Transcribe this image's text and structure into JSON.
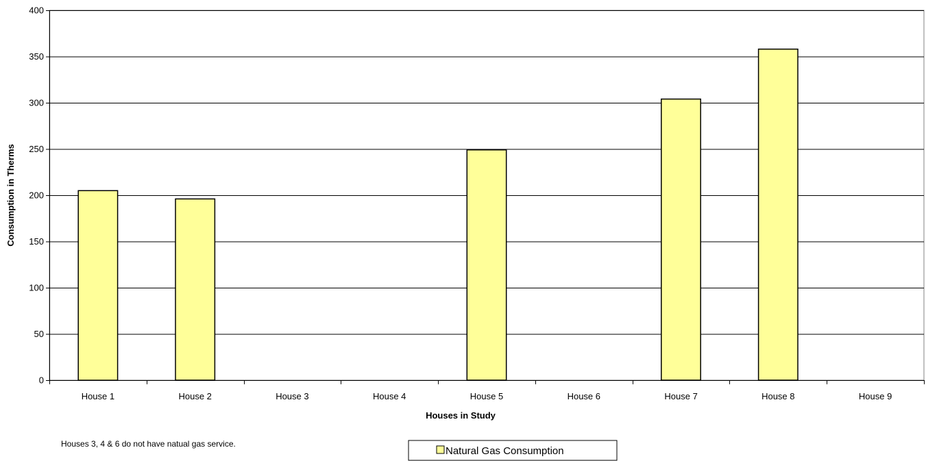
{
  "chart_data": {
    "type": "bar",
    "title": "",
    "xlabel": "Houses in Study",
    "ylabel": "Consumption in Therms",
    "categories": [
      "House 1",
      "House 2",
      "House 3",
      "House 4",
      "House 5",
      "House 6",
      "House 7",
      "House 8",
      "House 9"
    ],
    "series": [
      {
        "name": "Natural Gas Consumption",
        "values": [
          205,
          196,
          0,
          0,
          249,
          0,
          304,
          358,
          0
        ],
        "color": "#ffff99"
      }
    ],
    "ylim": [
      0,
      400
    ],
    "yticks": [
      0,
      50,
      100,
      150,
      200,
      250,
      300,
      350,
      400
    ],
    "grid": true,
    "legend_position": "bottom-center"
  },
  "note": "Houses 3, 4 & 6 do not have natual gas service."
}
